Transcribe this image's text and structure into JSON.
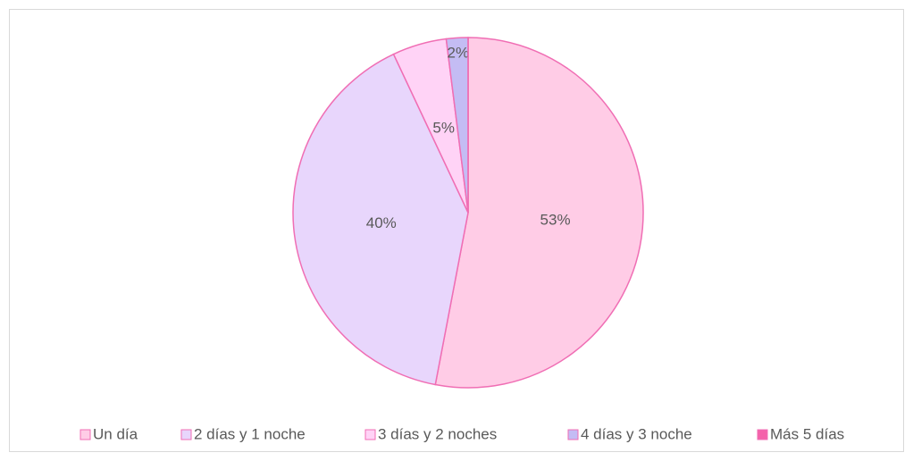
{
  "chart_data": {
    "type": "pie",
    "categories": [
      "Un día",
      "2 días y 1 noche",
      "3 días y 2 noches",
      "4 días y 3 noche",
      "Más 5 días"
    ],
    "values": [
      53,
      40,
      5,
      2,
      0
    ],
    "value_labels": [
      "53%",
      "40%",
      "5%",
      "2%",
      null
    ],
    "colors": [
      "#ffcce6",
      "#e8d6fc",
      "#ffd3f6",
      "#c4bcf4",
      "#f462aa"
    ],
    "edge_color": "#f06eb4",
    "legend": "bottom"
  }
}
